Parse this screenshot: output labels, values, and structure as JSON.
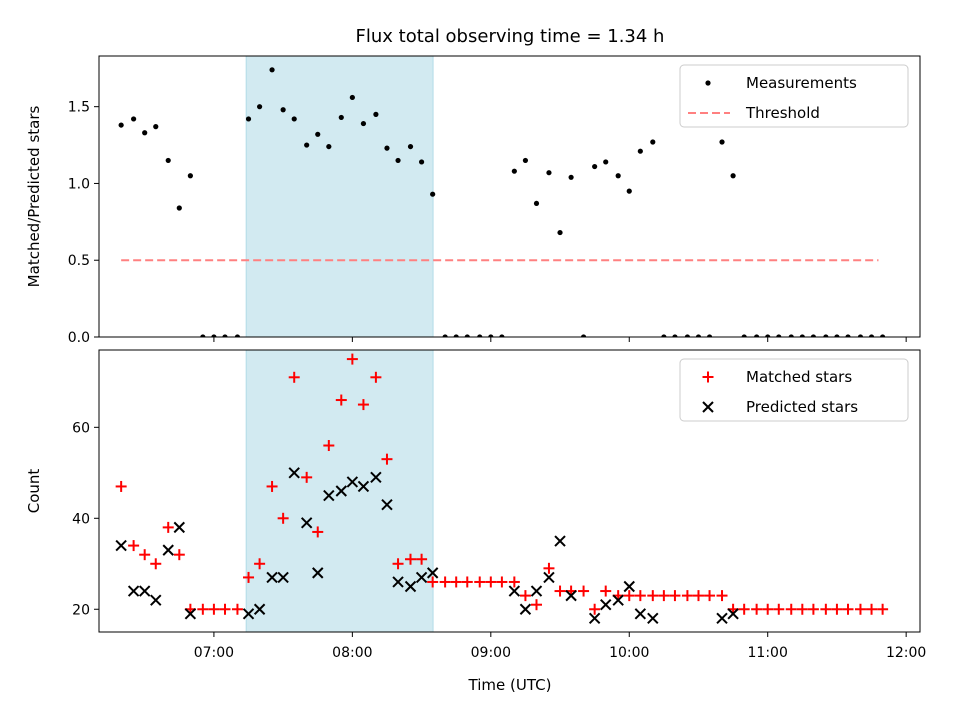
{
  "chart_data": {
    "title": "Flux total observing time = 1.34 h",
    "x_axis": {
      "label": "Time (UTC)",
      "unit": "hours UTC",
      "range": [
        6.17,
        12.1
      ],
      "ticks": [
        7,
        8,
        9,
        10,
        11,
        12
      ],
      "tick_labels": [
        "07:00",
        "08:00",
        "09:00",
        "10:00",
        "11:00",
        "12:00"
      ]
    },
    "highlight": {
      "type": "observing-window",
      "start": 7.233,
      "end": 8.583,
      "color": "#add8e6"
    },
    "panels": [
      {
        "name": "ratio",
        "type": "scatter",
        "ylabel": "Matched/Predicted stars",
        "ylim": [
          0,
          1.83
        ],
        "yticks": [
          0,
          0.5,
          1.0,
          1.5
        ],
        "ytick_labels": [
          "0.0",
          "0.5",
          "1.0",
          "1.5"
        ],
        "legend": [
          "Measurements",
          "Threshold"
        ],
        "threshold": {
          "value": 0.5,
          "x_start": 6.33,
          "x_end": 11.8,
          "label": "Threshold",
          "color": "#ff8080"
        },
        "series": [
          {
            "name": "Measurements",
            "marker": "dot",
            "color": "#000000",
            "points": [
              [
                6.33,
                1.38
              ],
              [
                6.42,
                1.42
              ],
              [
                6.5,
                1.33
              ],
              [
                6.58,
                1.37
              ],
              [
                6.67,
                1.15
              ],
              [
                6.75,
                0.84
              ],
              [
                6.83,
                1.05
              ],
              [
                6.92,
                0.0
              ],
              [
                7.0,
                0.0
              ],
              [
                7.08,
                0.0
              ],
              [
                7.17,
                0.0
              ],
              [
                7.25,
                1.42
              ],
              [
                7.33,
                1.5
              ],
              [
                7.42,
                1.74
              ],
              [
                7.5,
                1.48
              ],
              [
                7.58,
                1.42
              ],
              [
                7.67,
                1.25
              ],
              [
                7.75,
                1.32
              ],
              [
                7.83,
                1.24
              ],
              [
                7.92,
                1.43
              ],
              [
                8.0,
                1.56
              ],
              [
                8.08,
                1.39
              ],
              [
                8.17,
                1.45
              ],
              [
                8.25,
                1.23
              ],
              [
                8.33,
                1.15
              ],
              [
                8.42,
                1.24
              ],
              [
                8.5,
                1.14
              ],
              [
                8.58,
                0.93
              ],
              [
                8.67,
                0.0
              ],
              [
                8.75,
                0.0
              ],
              [
                8.83,
                0.0
              ],
              [
                8.92,
                0.0
              ],
              [
                9.0,
                0.0
              ],
              [
                9.08,
                0.0
              ],
              [
                9.17,
                1.08
              ],
              [
                9.25,
                1.15
              ],
              [
                9.33,
                0.87
              ],
              [
                9.42,
                1.07
              ],
              [
                9.5,
                0.68
              ],
              [
                9.58,
                1.04
              ],
              [
                9.67,
                0.0
              ],
              [
                9.75,
                1.11
              ],
              [
                9.83,
                1.14
              ],
              [
                9.92,
                1.05
              ],
              [
                10.0,
                0.95
              ],
              [
                10.08,
                1.21
              ],
              [
                10.17,
                1.27
              ],
              [
                10.25,
                0.0
              ],
              [
                10.33,
                0.0
              ],
              [
                10.42,
                0.0
              ],
              [
                10.5,
                0.0
              ],
              [
                10.58,
                0.0
              ],
              [
                10.67,
                1.27
              ],
              [
                10.75,
                1.05
              ],
              [
                10.83,
                0.0
              ],
              [
                10.92,
                0.0
              ],
              [
                11.0,
                0.0
              ],
              [
                11.08,
                0.0
              ],
              [
                11.17,
                0.0
              ],
              [
                11.25,
                0.0
              ],
              [
                11.33,
                0.0
              ],
              [
                11.42,
                0.0
              ],
              [
                11.5,
                0.0
              ],
              [
                11.58,
                0.0
              ],
              [
                11.67,
                0.0
              ],
              [
                11.75,
                0.0
              ],
              [
                11.83,
                0.0
              ]
            ]
          }
        ]
      },
      {
        "name": "counts",
        "type": "scatter",
        "ylabel": "Count",
        "xlabel": "Time (UTC)",
        "ylim": [
          15,
          77
        ],
        "yticks": [
          20,
          40,
          60
        ],
        "ytick_labels": [
          "20",
          "40",
          "60"
        ],
        "legend": [
          "Matched stars",
          "Predicted stars"
        ],
        "series": [
          {
            "name": "Matched stars",
            "marker": "plus",
            "color": "#ff0000",
            "points": [
              [
                6.33,
                47
              ],
              [
                6.42,
                34
              ],
              [
                6.5,
                32
              ],
              [
                6.58,
                30
              ],
              [
                6.67,
                38
              ],
              [
                6.75,
                32
              ],
              [
                6.83,
                20
              ],
              [
                6.92,
                20
              ],
              [
                7.0,
                20
              ],
              [
                7.08,
                20
              ],
              [
                7.17,
                20
              ],
              [
                7.25,
                27
              ],
              [
                7.33,
                30
              ],
              [
                7.42,
                47
              ],
              [
                7.5,
                40
              ],
              [
                7.58,
                71
              ],
              [
                7.67,
                49
              ],
              [
                7.75,
                37
              ],
              [
                7.83,
                56
              ],
              [
                7.92,
                66
              ],
              [
                8.0,
                75
              ],
              [
                8.08,
                65
              ],
              [
                8.17,
                71
              ],
              [
                8.25,
                53
              ],
              [
                8.33,
                30
              ],
              [
                8.42,
                31
              ],
              [
                8.5,
                31
              ],
              [
                8.58,
                26
              ],
              [
                8.67,
                26
              ],
              [
                8.75,
                26
              ],
              [
                8.83,
                26
              ],
              [
                8.92,
                26
              ],
              [
                9.0,
                26
              ],
              [
                9.08,
                26
              ],
              [
                9.17,
                26
              ],
              [
                9.25,
                23
              ],
              [
                9.33,
                21
              ],
              [
                9.42,
                29
              ],
              [
                9.5,
                24
              ],
              [
                9.58,
                24
              ],
              [
                9.67,
                24
              ],
              [
                9.75,
                20
              ],
              [
                9.83,
                24
              ],
              [
                9.92,
                23
              ],
              [
                10.0,
                23
              ],
              [
                10.08,
                23
              ],
              [
                10.17,
                23
              ],
              [
                10.25,
                23
              ],
              [
                10.33,
                23
              ],
              [
                10.42,
                23
              ],
              [
                10.5,
                23
              ],
              [
                10.58,
                23
              ],
              [
                10.67,
                23
              ],
              [
                10.75,
                20
              ],
              [
                10.83,
                20
              ],
              [
                10.92,
                20
              ],
              [
                11.0,
                20
              ],
              [
                11.08,
                20
              ],
              [
                11.17,
                20
              ],
              [
                11.25,
                20
              ],
              [
                11.33,
                20
              ],
              [
                11.42,
                20
              ],
              [
                11.5,
                20
              ],
              [
                11.58,
                20
              ],
              [
                11.67,
                20
              ],
              [
                11.75,
                20
              ],
              [
                11.83,
                20
              ]
            ]
          },
          {
            "name": "Predicted stars",
            "marker": "x",
            "color": "#000000",
            "points": [
              [
                6.33,
                34
              ],
              [
                6.42,
                24
              ],
              [
                6.5,
                24
              ],
              [
                6.58,
                22
              ],
              [
                6.67,
                33
              ],
              [
                6.75,
                38
              ],
              [
                6.83,
                19
              ],
              [
                7.25,
                19
              ],
              [
                7.33,
                20
              ],
              [
                7.42,
                27
              ],
              [
                7.5,
                27
              ],
              [
                7.58,
                50
              ],
              [
                7.67,
                39
              ],
              [
                7.75,
                28
              ],
              [
                7.83,
                45
              ],
              [
                7.92,
                46
              ],
              [
                8.0,
                48
              ],
              [
                8.08,
                47
              ],
              [
                8.17,
                49
              ],
              [
                8.25,
                43
              ],
              [
                8.33,
                26
              ],
              [
                8.42,
                25
              ],
              [
                8.5,
                27
              ],
              [
                8.58,
                28
              ],
              [
                9.17,
                24
              ],
              [
                9.25,
                20
              ],
              [
                9.33,
                24
              ],
              [
                9.42,
                27
              ],
              [
                9.5,
                35
              ],
              [
                9.58,
                23
              ],
              [
                9.75,
                18
              ],
              [
                9.83,
                21
              ],
              [
                9.92,
                22
              ],
              [
                10.0,
                25
              ],
              [
                10.08,
                19
              ],
              [
                10.17,
                18
              ],
              [
                10.67,
                18
              ],
              [
                10.75,
                19
              ]
            ]
          }
        ]
      }
    ]
  }
}
